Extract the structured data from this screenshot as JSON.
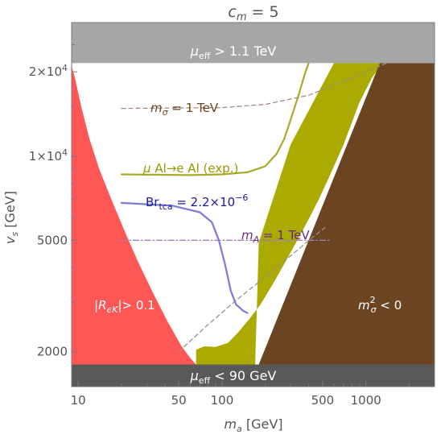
{
  "chart_data": {
    "type": "area",
    "title": "c_m = 5",
    "xlabel": "m_a [GeV]",
    "ylabel": "v_s [GeV]",
    "xscale": "log",
    "yscale": "log",
    "xlim": [
      9,
      3000
    ],
    "ylim": [
      1500,
      30000
    ],
    "x_ticks": [
      {
        "value": 10,
        "label": "10"
      },
      {
        "value": 50,
        "label": "50"
      },
      {
        "value": 100,
        "label": "100"
      },
      {
        "value": 500,
        "label": "500"
      },
      {
        "value": 1000,
        "label": "1000"
      }
    ],
    "y_ticks": [
      {
        "value": 2000,
        "label": "2000"
      },
      {
        "value": 5000,
        "label": "5000"
      },
      {
        "value": 10000,
        "label": "1 × 10^4"
      },
      {
        "value": 20000,
        "label": "2 × 10^4"
      }
    ],
    "bands": [
      {
        "name": "mu_eff > 1.1 TeV",
        "label": "μ_eff > 1.1 TeV",
        "v_s_min": 21500,
        "v_s_max": 30000,
        "color": "#A6A6A6"
      },
      {
        "name": "mu_eff < 90 GeV",
        "label": "μ_eff < 90 GeV",
        "v_s_min": 1500,
        "v_s_max": 1800,
        "color": "#595959"
      }
    ],
    "regions": [
      {
        "name": "R_epsK",
        "label": "|R_εK| > 0.1",
        "color": "#FF5656",
        "boundary": [
          [
            9,
            21000
          ],
          [
            9.5,
            19000
          ],
          [
            10.5,
            15000
          ],
          [
            12,
            11500
          ],
          [
            14,
            9000
          ],
          [
            17,
            7000
          ],
          [
            21,
            5400
          ],
          [
            26,
            4200
          ],
          [
            33,
            3250
          ],
          [
            42,
            2550
          ],
          [
            52,
            2100
          ],
          [
            60,
            1900
          ],
          [
            66,
            1800
          ],
          [
            9,
            1800
          ]
        ]
      },
      {
        "name": "mu_to_e_exp_excluded",
        "label": "μ Al→e Al (exp.)",
        "color": "#AAAA00",
        "boundary": [
          [
            66,
            1800
          ],
          [
            66,
            2030
          ],
          [
            75,
            2090
          ],
          [
            90,
            2080
          ],
          [
            110,
            2150
          ],
          [
            130,
            2350
          ],
          [
            155,
            2620
          ],
          [
            185,
            2950
          ],
          [
            230,
            3550
          ],
          [
            280,
            4250
          ],
          [
            340,
            5100
          ],
          [
            400,
            5950
          ],
          [
            470,
            7000
          ],
          [
            560,
            8500
          ],
          [
            700,
            11000
          ],
          [
            900,
            15500
          ],
          [
            1100,
            19000
          ],
          [
            1300,
            21500
          ],
          [
            600,
            21500
          ],
          [
            300,
            11000
          ],
          [
            180,
            4900
          ],
          [
            170,
            1800
          ]
        ]
      },
      {
        "name": "m_sigma_sq_negative",
        "label": "m_σ² < 0",
        "color": "#6B4521",
        "boundary": [
          [
            180,
            1800
          ],
          [
            1250,
            21500
          ],
          [
            3000,
            21500
          ],
          [
            3000,
            1800
          ]
        ]
      }
    ],
    "curves": [
      {
        "name": "m_sigma = 1 TeV",
        "label": "m_σ = 1 TeV",
        "style": "dashed",
        "color": "#A08C80",
        "upper_branch": [
          [
            20,
            14800
          ],
          [
            100,
            14900
          ],
          [
            200,
            15300
          ],
          [
            400,
            16500
          ],
          [
            700,
            18500
          ],
          [
            1000,
            20000
          ],
          [
            1400,
            21500
          ]
        ],
        "lower_branch": [
          [
            50,
            2000
          ],
          [
            80,
            2500
          ],
          [
            130,
            3100
          ],
          [
            200,
            3700
          ],
          [
            300,
            4400
          ],
          [
            420,
            5100
          ],
          [
            520,
            5550
          ]
        ]
      },
      {
        "name": "mu Al to e Al (exp.)",
        "label": "μ Al→e Al (exp.)",
        "style": "solid",
        "color": "#AAAA2A",
        "points": [
          [
            20,
            8600
          ],
          [
            60,
            8550
          ],
          [
            100,
            8600
          ],
          [
            150,
            8750
          ],
          [
            200,
            9200
          ],
          [
            240,
            10200
          ],
          [
            270,
            11500
          ],
          [
            300,
            13500
          ],
          [
            340,
            16500
          ],
          [
            380,
            20000
          ],
          [
            400,
            21500
          ]
        ]
      },
      {
        "name": "Br_tca = 2.2e-6",
        "label": "Br_tca = 2.2×10^−6",
        "style": "solid",
        "color": "#7B7BD6",
        "points": [
          [
            20,
            6800
          ],
          [
            45,
            6650
          ],
          [
            70,
            6300
          ],
          [
            85,
            5800
          ],
          [
            95,
            5000
          ],
          [
            105,
            4100
          ],
          [
            115,
            3300
          ],
          [
            125,
            2950
          ],
          [
            140,
            2800
          ],
          [
            150,
            2750
          ]
        ]
      },
      {
        "name": "m_A = 1 TeV",
        "label": "m_A = 1 TeV",
        "style": "dashdot",
        "color": "#A07EC0",
        "points": [
          [
            20,
            5000
          ],
          [
            100,
            5000
          ],
          [
            300,
            5000
          ],
          [
            560,
            5000
          ]
        ]
      }
    ]
  }
}
